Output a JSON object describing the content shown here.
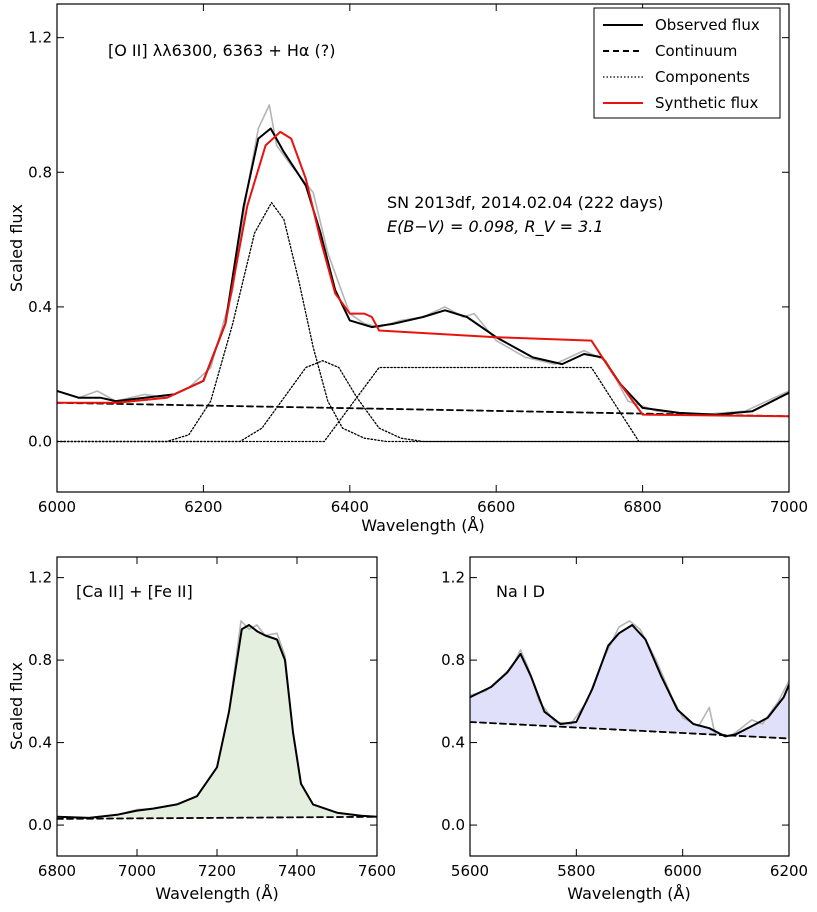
{
  "chart_data": [
    {
      "type": "line",
      "xlabel": "Wavelength (Å)",
      "ylabel": "Scaled flux",
      "xlim": [
        6000,
        7000
      ],
      "ylim": [
        -0.15,
        1.3
      ],
      "xticks": [
        6000,
        6200,
        6400,
        6600,
        6800,
        7000
      ],
      "yticks": [
        0.0,
        0.4,
        0.8,
        1.2
      ],
      "annotations": {
        "line_id": "[O II] λλ6300, 6363 + Hα (?)",
        "object": "SN 2013df, 2014.02.04 (222 days)",
        "extinction": "E(B−V) = 0.098, R_V = 3.1"
      },
      "legend_position": "top-right",
      "legend": [
        {
          "label": "Observed flux",
          "style": "solid",
          "color": "#000000"
        },
        {
          "label": "Continuum",
          "style": "dashed",
          "color": "#000000"
        },
        {
          "label": "Components",
          "style": "dotted",
          "color": "#000000"
        },
        {
          "label": "Synthetic flux",
          "style": "solid",
          "color": "#e8130f"
        }
      ],
      "series": [
        {
          "name": "raw",
          "style": "solid",
          "color": "#b5b5b5",
          "points": [
            [
              6000,
              0.15
            ],
            [
              6030,
              0.13
            ],
            [
              6055,
              0.15
            ],
            [
              6080,
              0.12
            ],
            [
              6120,
              0.14
            ],
            [
              6150,
              0.13
            ],
            [
              6180,
              0.16
            ],
            [
              6210,
              0.22
            ],
            [
              6240,
              0.45
            ],
            [
              6260,
              0.75
            ],
            [
              6275,
              0.93
            ],
            [
              6290,
              1.0
            ],
            [
              6300,
              0.88
            ],
            [
              6320,
              0.82
            ],
            [
              6350,
              0.74
            ],
            [
              6370,
              0.56
            ],
            [
              6400,
              0.38
            ],
            [
              6420,
              0.35
            ],
            [
              6440,
              0.34
            ],
            [
              6470,
              0.36
            ],
            [
              6500,
              0.37
            ],
            [
              6530,
              0.4
            ],
            [
              6555,
              0.37
            ],
            [
              6570,
              0.38
            ],
            [
              6600,
              0.3
            ],
            [
              6640,
              0.25
            ],
            [
              6680,
              0.23
            ],
            [
              6720,
              0.27
            ],
            [
              6750,
              0.24
            ],
            [
              6780,
              0.12
            ],
            [
              6820,
              0.09
            ],
            [
              6880,
              0.08
            ],
            [
              6940,
              0.09
            ],
            [
              7000,
              0.15
            ]
          ]
        },
        {
          "name": "Observed flux",
          "style": "solid",
          "color": "#000000",
          "points": [
            [
              6000,
              0.15
            ],
            [
              6030,
              0.13
            ],
            [
              6060,
              0.13
            ],
            [
              6080,
              0.12
            ],
            [
              6120,
              0.13
            ],
            [
              6160,
              0.14
            ],
            [
              6200,
              0.18
            ],
            [
              6230,
              0.35
            ],
            [
              6255,
              0.7
            ],
            [
              6275,
              0.9
            ],
            [
              6292,
              0.93
            ],
            [
              6310,
              0.86
            ],
            [
              6340,
              0.76
            ],
            [
              6360,
              0.62
            ],
            [
              6380,
              0.45
            ],
            [
              6400,
              0.36
            ],
            [
              6430,
              0.34
            ],
            [
              6460,
              0.35
            ],
            [
              6500,
              0.37
            ],
            [
              6530,
              0.39
            ],
            [
              6560,
              0.37
            ],
            [
              6600,
              0.31
            ],
            [
              6650,
              0.25
            ],
            [
              6690,
              0.23
            ],
            [
              6720,
              0.26
            ],
            [
              6745,
              0.25
            ],
            [
              6770,
              0.17
            ],
            [
              6800,
              0.1
            ],
            [
              6850,
              0.085
            ],
            [
              6900,
              0.08
            ],
            [
              6950,
              0.09
            ],
            [
              7000,
              0.145
            ]
          ]
        },
        {
          "name": "Synthetic flux",
          "style": "solid",
          "color": "#e8130f",
          "points": [
            [
              6000,
              0.115
            ],
            [
              6080,
              0.115
            ],
            [
              6150,
              0.13
            ],
            [
              6200,
              0.18
            ],
            [
              6230,
              0.35
            ],
            [
              6260,
              0.7
            ],
            [
              6285,
              0.88
            ],
            [
              6305,
              0.92
            ],
            [
              6320,
              0.9
            ],
            [
              6340,
              0.78
            ],
            [
              6360,
              0.6
            ],
            [
              6380,
              0.44
            ],
            [
              6400,
              0.38
            ],
            [
              6420,
              0.38
            ],
            [
              6430,
              0.37
            ],
            [
              6440,
              0.33
            ],
            [
              6600,
              0.31
            ],
            [
              6730,
              0.3
            ],
            [
              6760,
              0.2
            ],
            [
              6800,
              0.08
            ],
            [
              7000,
              0.075
            ]
          ]
        },
        {
          "name": "Continuum",
          "style": "dashed",
          "color": "#000000",
          "points": [
            [
              6000,
              0.115
            ],
            [
              7000,
              0.075
            ]
          ]
        },
        {
          "name": "Component 1",
          "style": "dotted",
          "color": "#000000",
          "points": [
            [
              6000,
              0.0
            ],
            [
              6150,
              0.0
            ],
            [
              6180,
              0.02
            ],
            [
              6210,
              0.12
            ],
            [
              6240,
              0.35
            ],
            [
              6270,
              0.62
            ],
            [
              6293,
              0.71
            ],
            [
              6310,
              0.66
            ],
            [
              6330,
              0.48
            ],
            [
              6350,
              0.28
            ],
            [
              6370,
              0.12
            ],
            [
              6390,
              0.04
            ],
            [
              6420,
              0.01
            ],
            [
              6450,
              0.0
            ],
            [
              7000,
              0.0
            ]
          ]
        },
        {
          "name": "Component 2",
          "style": "dotted",
          "color": "#000000",
          "points": [
            [
              6000,
              0.0
            ],
            [
              6250,
              0.0
            ],
            [
              6280,
              0.04
            ],
            [
              6310,
              0.13
            ],
            [
              6340,
              0.22
            ],
            [
              6363,
              0.24
            ],
            [
              6385,
              0.22
            ],
            [
              6410,
              0.13
            ],
            [
              6440,
              0.04
            ],
            [
              6470,
              0.01
            ],
            [
              6500,
              0.0
            ],
            [
              7000,
              0.0
            ]
          ]
        },
        {
          "name": "Component 3",
          "style": "dotted",
          "color": "#000000",
          "points": [
            [
              6000,
              0.0
            ],
            [
              6365,
              0.0
            ],
            [
              6440,
              0.22
            ],
            [
              6730,
              0.22
            ],
            [
              6795,
              0.0
            ],
            [
              7000,
              0.0
            ]
          ]
        }
      ]
    },
    {
      "type": "line",
      "xlabel": "Wavelength (Å)",
      "ylabel": "Scaled flux",
      "xlim": [
        6800,
        7600
      ],
      "ylim": [
        -0.15,
        1.3
      ],
      "xticks": [
        6800,
        7000,
        7200,
        7400,
        7600
      ],
      "yticks": [
        0.0,
        0.4,
        0.8,
        1.2
      ],
      "annotations": {
        "line_id": "[Ca II] + [Fe II]"
      },
      "fill_color": "#e4efe0",
      "series": [
        {
          "name": "raw",
          "style": "solid",
          "color": "#b5b5b5",
          "points": [
            [
              6800,
              0.04
            ],
            [
              6880,
              0.035
            ],
            [
              6950,
              0.05
            ],
            [
              7000,
              0.075
            ],
            [
              7040,
              0.08
            ],
            [
              7100,
              0.1
            ],
            [
              7150,
              0.14
            ],
            [
              7200,
              0.28
            ],
            [
              7230,
              0.55
            ],
            [
              7260,
              0.99
            ],
            [
              7280,
              0.95
            ],
            [
              7300,
              0.97
            ],
            [
              7320,
              0.92
            ],
            [
              7350,
              0.93
            ],
            [
              7370,
              0.82
            ],
            [
              7390,
              0.45
            ],
            [
              7410,
              0.2
            ],
            [
              7440,
              0.1
            ],
            [
              7500,
              0.06
            ],
            [
              7560,
              0.045
            ],
            [
              7600,
              0.04
            ]
          ]
        },
        {
          "name": "Observed flux",
          "style": "solid",
          "color": "#000000",
          "points": [
            [
              6800,
              0.04
            ],
            [
              6880,
              0.035
            ],
            [
              6950,
              0.05
            ],
            [
              7000,
              0.07
            ],
            [
              7040,
              0.08
            ],
            [
              7100,
              0.1
            ],
            [
              7150,
              0.14
            ],
            [
              7200,
              0.28
            ],
            [
              7230,
              0.55
            ],
            [
              7262,
              0.95
            ],
            [
              7280,
              0.97
            ],
            [
              7300,
              0.94
            ],
            [
              7320,
              0.92
            ],
            [
              7350,
              0.9
            ],
            [
              7370,
              0.8
            ],
            [
              7390,
              0.45
            ],
            [
              7410,
              0.2
            ],
            [
              7440,
              0.1
            ],
            [
              7500,
              0.06
            ],
            [
              7560,
              0.045
            ],
            [
              7600,
              0.04
            ]
          ]
        },
        {
          "name": "Continuum",
          "style": "dashed",
          "color": "#000000",
          "points": [
            [
              6800,
              0.03
            ],
            [
              7600,
              0.04
            ]
          ]
        }
      ]
    },
    {
      "type": "line",
      "xlabel": "Wavelength (Å)",
      "ylabel": "",
      "xlim": [
        5600,
        6200
      ],
      "ylim": [
        -0.15,
        1.3
      ],
      "xticks": [
        5600,
        5800,
        6000,
        6200
      ],
      "yticks": [
        0.0,
        0.4,
        0.8,
        1.2
      ],
      "annotations": {
        "line_id": "Na I D"
      },
      "fill_color": "#e0e0fa",
      "series": [
        {
          "name": "raw",
          "style": "solid",
          "color": "#b5b5b5",
          "points": [
            [
              5600,
              0.63
            ],
            [
              5630,
              0.65
            ],
            [
              5660,
              0.72
            ],
            [
              5680,
              0.77
            ],
            [
              5695,
              0.85
            ],
            [
              5710,
              0.76
            ],
            [
              5730,
              0.6
            ],
            [
              5760,
              0.5
            ],
            [
              5790,
              0.49
            ],
            [
              5820,
              0.6
            ],
            [
              5850,
              0.8
            ],
            [
              5880,
              0.96
            ],
            [
              5900,
              0.99
            ],
            [
              5920,
              0.95
            ],
            [
              5950,
              0.8
            ],
            [
              5980,
              0.62
            ],
            [
              6000,
              0.52
            ],
            [
              6030,
              0.48
            ],
            [
              6050,
              0.57
            ],
            [
              6060,
              0.45
            ],
            [
              6090,
              0.43
            ],
            [
              6110,
              0.47
            ],
            [
              6130,
              0.51
            ],
            [
              6150,
              0.49
            ],
            [
              6180,
              0.6
            ],
            [
              6200,
              0.7
            ]
          ]
        },
        {
          "name": "Observed flux",
          "style": "solid",
          "color": "#000000",
          "points": [
            [
              5600,
              0.62
            ],
            [
              5640,
              0.67
            ],
            [
              5670,
              0.74
            ],
            [
              5695,
              0.83
            ],
            [
              5715,
              0.72
            ],
            [
              5740,
              0.55
            ],
            [
              5770,
              0.49
            ],
            [
              5800,
              0.5
            ],
            [
              5830,
              0.66
            ],
            [
              5860,
              0.87
            ],
            [
              5880,
              0.93
            ],
            [
              5905,
              0.97
            ],
            [
              5930,
              0.9
            ],
            [
              5960,
              0.72
            ],
            [
              5990,
              0.56
            ],
            [
              6020,
              0.49
            ],
            [
              6050,
              0.47
            ],
            [
              6080,
              0.43
            ],
            [
              6100,
              0.44
            ],
            [
              6130,
              0.48
            ],
            [
              6160,
              0.52
            ],
            [
              6190,
              0.62
            ],
            [
              6200,
              0.68
            ]
          ]
        },
        {
          "name": "Continuum",
          "style": "dashed",
          "color": "#000000",
          "points": [
            [
              5600,
              0.5
            ],
            [
              6200,
              0.42
            ]
          ]
        }
      ]
    }
  ]
}
